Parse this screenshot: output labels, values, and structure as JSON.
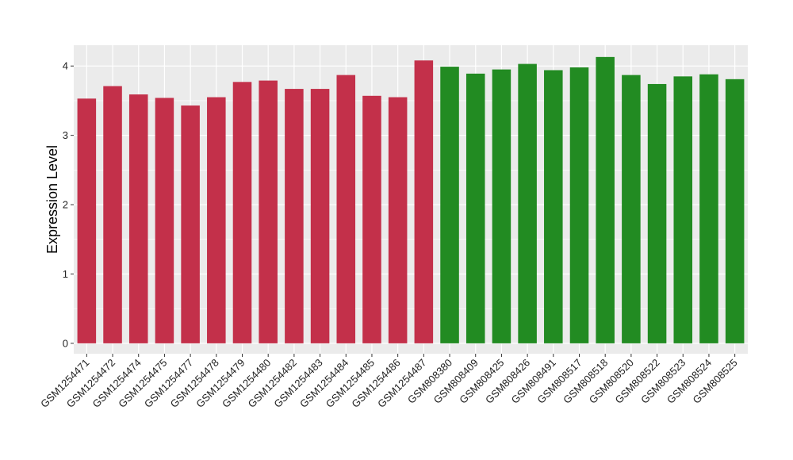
{
  "chart_data": {
    "type": "bar",
    "title": "",
    "xlabel": "",
    "ylabel": "Expression Level",
    "ylim": [
      -0.15,
      4.3
    ],
    "yticks": [
      0,
      1,
      2,
      3,
      4
    ],
    "grid": true,
    "categories": [
      "GSM1254471",
      "GSM1254472",
      "GSM1254474",
      "GSM1254475",
      "GSM1254477",
      "GSM1254478",
      "GSM1254479",
      "GSM1254480",
      "GSM1254482",
      "GSM1254483",
      "GSM1254484",
      "GSM1254485",
      "GSM1254486",
      "GSM1254487",
      "GSM808380",
      "GSM808409",
      "GSM808425",
      "GSM808426",
      "GSM808491",
      "GSM808517",
      "GSM808518",
      "GSM808520",
      "GSM808522",
      "GSM808523",
      "GSM808524",
      "GSM808525"
    ],
    "values": [
      3.53,
      3.71,
      3.59,
      3.54,
      3.43,
      3.55,
      3.77,
      3.79,
      3.67,
      3.67,
      3.87,
      3.57,
      3.55,
      4.08,
      3.99,
      3.89,
      3.95,
      4.03,
      3.94,
      3.98,
      4.13,
      3.87,
      3.74,
      3.85,
      3.88,
      3.81
    ],
    "groups": [
      0,
      0,
      0,
      0,
      0,
      0,
      0,
      0,
      0,
      0,
      0,
      0,
      0,
      0,
      1,
      1,
      1,
      1,
      1,
      1,
      1,
      1,
      1,
      1,
      1,
      1
    ],
    "group_colors": [
      "#C3304A",
      "#228B22"
    ],
    "panel_background": "#EBEBEB",
    "grid_color": "#FFFFFF"
  }
}
